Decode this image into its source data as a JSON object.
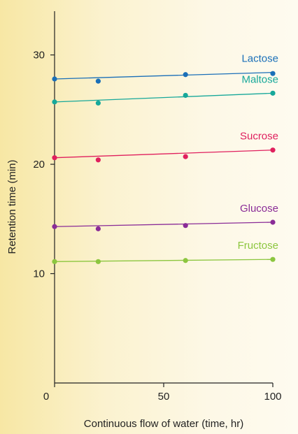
{
  "chart_data": {
    "type": "scatter",
    "xlabel": "Continuous flow of water (time, hr)",
    "ylabel": "Retention time (min)",
    "xlim": [
      0,
      100
    ],
    "ylim": [
      0,
      34
    ],
    "x_ticks": [
      {
        "value": 0,
        "label": "0"
      },
      {
        "value": 50,
        "label": "50"
      },
      {
        "value": 100,
        "label": "100"
      }
    ],
    "y_ticks": [
      {
        "value": 10,
        "label": "10"
      },
      {
        "value": 20,
        "label": "20"
      },
      {
        "value": 30,
        "label": "30"
      }
    ],
    "grid": false,
    "legend": "inline labels at right end of each series",
    "series": [
      {
        "name": "Lactose",
        "color": "#1a6fb8",
        "points": [
          {
            "x": 0,
            "y": 27.8
          },
          {
            "x": 20,
            "y": 27.6
          },
          {
            "x": 60,
            "y": 28.2
          },
          {
            "x": 100,
            "y": 28.3
          }
        ],
        "fit": [
          {
            "x": 0,
            "y": 27.8
          },
          {
            "x": 100,
            "y": 28.4
          }
        ]
      },
      {
        "name": "Maltose",
        "color": "#17a89a",
        "points": [
          {
            "x": 0,
            "y": 25.7
          },
          {
            "x": 20,
            "y": 25.6
          },
          {
            "x": 60,
            "y": 26.3
          },
          {
            "x": 100,
            "y": 26.5
          }
        ],
        "fit": [
          {
            "x": 0,
            "y": 25.7
          },
          {
            "x": 100,
            "y": 26.5
          }
        ]
      },
      {
        "name": "Sucrose",
        "color": "#e0205e",
        "points": [
          {
            "x": 0,
            "y": 20.6
          },
          {
            "x": 20,
            "y": 20.4
          },
          {
            "x": 60,
            "y": 20.7
          },
          {
            "x": 100,
            "y": 21.3
          }
        ],
        "fit": [
          {
            "x": 0,
            "y": 20.6
          },
          {
            "x": 100,
            "y": 21.3
          }
        ]
      },
      {
        "name": "Glucose",
        "color": "#8a2c97",
        "points": [
          {
            "x": 0,
            "y": 14.3
          },
          {
            "x": 20,
            "y": 14.1
          },
          {
            "x": 60,
            "y": 14.4
          },
          {
            "x": 100,
            "y": 14.7
          }
        ],
        "fit": [
          {
            "x": 0,
            "y": 14.3
          },
          {
            "x": 100,
            "y": 14.7
          }
        ]
      },
      {
        "name": "Fructose",
        "color": "#8cc63f",
        "points": [
          {
            "x": 0,
            "y": 11.1
          },
          {
            "x": 20,
            "y": 11.1
          },
          {
            "x": 60,
            "y": 11.2
          },
          {
            "x": 100,
            "y": 11.3
          }
        ],
        "fit": [
          {
            "x": 0,
            "y": 11.1
          },
          {
            "x": 100,
            "y": 11.3
          }
        ]
      }
    ]
  }
}
